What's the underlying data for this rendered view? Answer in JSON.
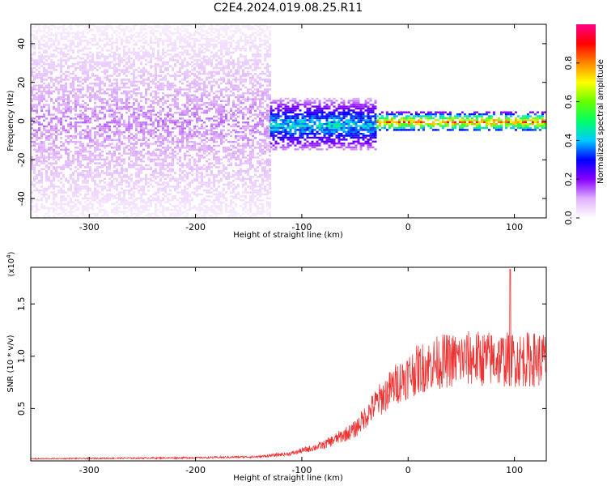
{
  "page_title": "C2E4.2024.019.08.25.R11",
  "chart_data": [
    {
      "type": "heatmap",
      "title": "C2E4.2024.019.08.25.R11",
      "xlabel": "Height of straight line (km)",
      "ylabel": "Frequency (Hz)",
      "xlim": [
        -355,
        130
      ],
      "ylim": [
        -50,
        50
      ],
      "x_ticks": [
        -300,
        -200,
        -100,
        0,
        100
      ],
      "y_ticks": [
        -40,
        -20,
        0,
        20,
        40
      ],
      "grid": false,
      "colorbar": {
        "label": "Normalized spectral amplitude",
        "range": [
          0,
          1
        ],
        "ticks": [
          "0.0",
          "0.2",
          "0.4",
          "0.6",
          "0.8"
        ],
        "colors": [
          "#ffffff",
          "#e0b0ff",
          "#8800ff",
          "#0000ff",
          "#00ccff",
          "#00ff66",
          "#66ff00",
          "#ffff00",
          "#ff8800",
          "#ff0000",
          "#ff0088"
        ]
      },
      "regions": [
        {
          "x": [
            -355,
            -130
          ],
          "freq_spread": [
            -50,
            50
          ],
          "amplitude": [
            0.02,
            0.15
          ]
        },
        {
          "x": [
            -130,
            -30
          ],
          "freq_spread": [
            -15,
            12
          ],
          "amplitude": [
            0.1,
            0.5
          ]
        },
        {
          "x": [
            -30,
            130
          ],
          "freq_spread": [
            -5,
            5
          ],
          "amplitude": [
            0.2,
            0.95
          ]
        }
      ]
    },
    {
      "type": "line",
      "xlabel": "Height of straight line (km)",
      "ylabel": "SNR (10 * v/v)",
      "y_multiplier_label": "(x10",
      "y_multiplier_exp": "4",
      "y_multiplier_close": ")",
      "xlim": [
        -355,
        130
      ],
      "ylim": [
        0,
        1.85
      ],
      "x_ticks": [
        -300,
        -200,
        -100,
        0,
        100
      ],
      "y_ticks": [
        {
          "value": 0.5,
          "label": "0.5"
        },
        {
          "value": 1.0,
          "label": "1.0"
        },
        {
          "value": 1.5,
          "label": "1.5"
        }
      ],
      "color": "#ee3333",
      "envelope": [
        {
          "x": -355,
          "y": 0.02
        },
        {
          "x": -200,
          "y": 0.03
        },
        {
          "x": -140,
          "y": 0.04
        },
        {
          "x": -110,
          "y": 0.07
        },
        {
          "x": -80,
          "y": 0.15
        },
        {
          "x": -50,
          "y": 0.3
        },
        {
          "x": -30,
          "y": 0.55
        },
        {
          "x": -10,
          "y": 0.75
        },
        {
          "x": 10,
          "y": 0.88
        },
        {
          "x": 30,
          "y": 0.95
        },
        {
          "x": 60,
          "y": 0.98
        },
        {
          "x": 90,
          "y": 0.97
        },
        {
          "x": 130,
          "y": 0.97
        }
      ],
      "spike": {
        "x": 96,
        "y": 1.83
      }
    }
  ]
}
